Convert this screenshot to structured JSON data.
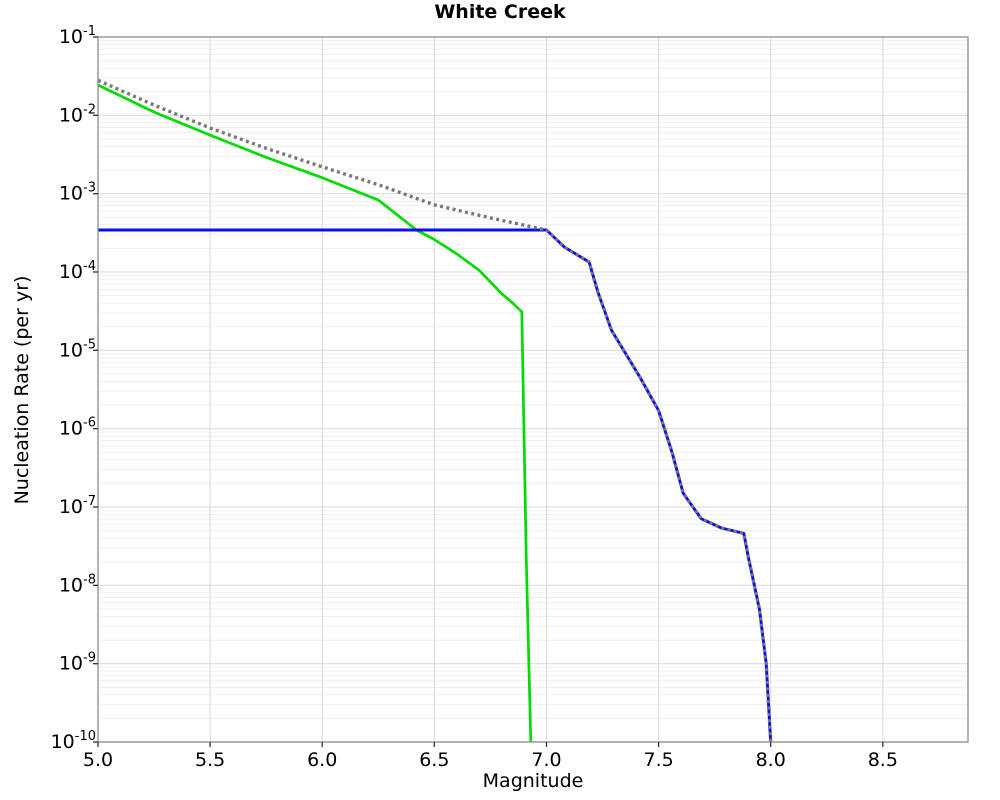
{
  "chart_data": {
    "type": "line",
    "title": "White Creek",
    "xlabel": "Magnitude",
    "ylabel": "Nucleation Rate (per yr)",
    "xlim": [
      5.0,
      8.88
    ],
    "ylim": [
      1e-10,
      0.1
    ],
    "grid": "major+log-minor",
    "legend": "none",
    "x_ticks": [
      {
        "value": 5.0,
        "label": "5.0"
      },
      {
        "value": 5.5,
        "label": "5.5"
      },
      {
        "value": 6.0,
        "label": "6.0"
      },
      {
        "value": 6.5,
        "label": "6.5"
      },
      {
        "value": 7.0,
        "label": "7.0"
      },
      {
        "value": 7.5,
        "label": "7.5"
      },
      {
        "value": 8.0,
        "label": "8.0"
      },
      {
        "value": 8.5,
        "label": "8.5"
      }
    ],
    "y_ticks": {
      "base": "10",
      "exponents": [
        -1,
        -2,
        -3,
        -4,
        -5,
        -6,
        -7,
        -8,
        -9,
        -10
      ]
    },
    "colors": {
      "grid_major": "#d9d9d9",
      "grid_minor": "#efefef",
      "border": "#8c8c8c",
      "tick": "#333333"
    },
    "series": [
      {
        "name": "green-solid-curve",
        "style": "solid",
        "color": "#00dc00",
        "width": 2.7,
        "points": [
          [
            5.0,
            0.0244
          ],
          [
            5.25,
            0.011
          ],
          [
            5.5,
            0.0056
          ],
          [
            5.75,
            0.0029
          ],
          [
            6.0,
            0.0016
          ],
          [
            6.25,
            0.00083
          ],
          [
            6.42,
            0.000344
          ],
          [
            6.5,
            0.00026
          ],
          [
            6.6,
            0.00017
          ],
          [
            6.7,
            0.000105
          ],
          [
            6.8,
            5.3e-05
          ],
          [
            6.85,
            4e-05
          ],
          [
            6.89,
            3.1e-05
          ],
          [
            6.9,
            8.8e-07
          ],
          [
            6.91,
            2.1e-08
          ],
          [
            6.93,
            1e-10
          ]
        ]
      },
      {
        "name": "blue-solid-curve",
        "style": "solid",
        "color": "#0a0aff",
        "width": 2.9,
        "points": [
          [
            5.0,
            0.000344
          ],
          [
            7.0,
            0.000344
          ],
          [
            7.08,
            0.000208
          ],
          [
            7.19,
            0.000134
          ],
          [
            7.23,
            5.5e-05
          ],
          [
            7.29,
            1.8e-05
          ],
          [
            7.35,
            9.4e-06
          ],
          [
            7.42,
            4.4e-06
          ],
          [
            7.5,
            1.7e-06
          ],
          [
            7.56,
            5e-07
          ],
          [
            7.61,
            1.5e-07
          ],
          [
            7.69,
            7.1e-08
          ],
          [
            7.78,
            5.4e-08
          ],
          [
            7.88,
            4.6e-08
          ],
          [
            7.9,
            2.3e-08
          ],
          [
            7.95,
            4.9e-09
          ],
          [
            7.98,
            1e-09
          ],
          [
            8.0,
            1e-10
          ]
        ]
      },
      {
        "name": "gray-dotted-curve",
        "style": "dotted",
        "color": "#787878",
        "width": 3.4,
        "dash": "3 3.4",
        "points": [
          [
            5.0,
            0.028
          ],
          [
            5.25,
            0.0135
          ],
          [
            5.5,
            0.0069
          ],
          [
            5.75,
            0.0038
          ],
          [
            6.0,
            0.0022
          ],
          [
            6.25,
            0.0013
          ],
          [
            6.5,
            0.00072
          ],
          [
            6.75,
            0.00049
          ],
          [
            7.0,
            0.000344
          ],
          [
            7.08,
            0.000208
          ],
          [
            7.19,
            0.000134
          ],
          [
            7.23,
            5.5e-05
          ],
          [
            7.29,
            1.8e-05
          ],
          [
            7.35,
            9.4e-06
          ],
          [
            7.42,
            4.4e-06
          ],
          [
            7.5,
            1.7e-06
          ],
          [
            7.56,
            5e-07
          ],
          [
            7.61,
            1.5e-07
          ],
          [
            7.69,
            7.1e-08
          ],
          [
            7.78,
            5.4e-08
          ],
          [
            7.88,
            4.6e-08
          ],
          [
            7.9,
            2.3e-08
          ],
          [
            7.95,
            4.9e-09
          ],
          [
            7.98,
            1e-09
          ],
          [
            8.0,
            1e-10
          ]
        ]
      }
    ]
  }
}
